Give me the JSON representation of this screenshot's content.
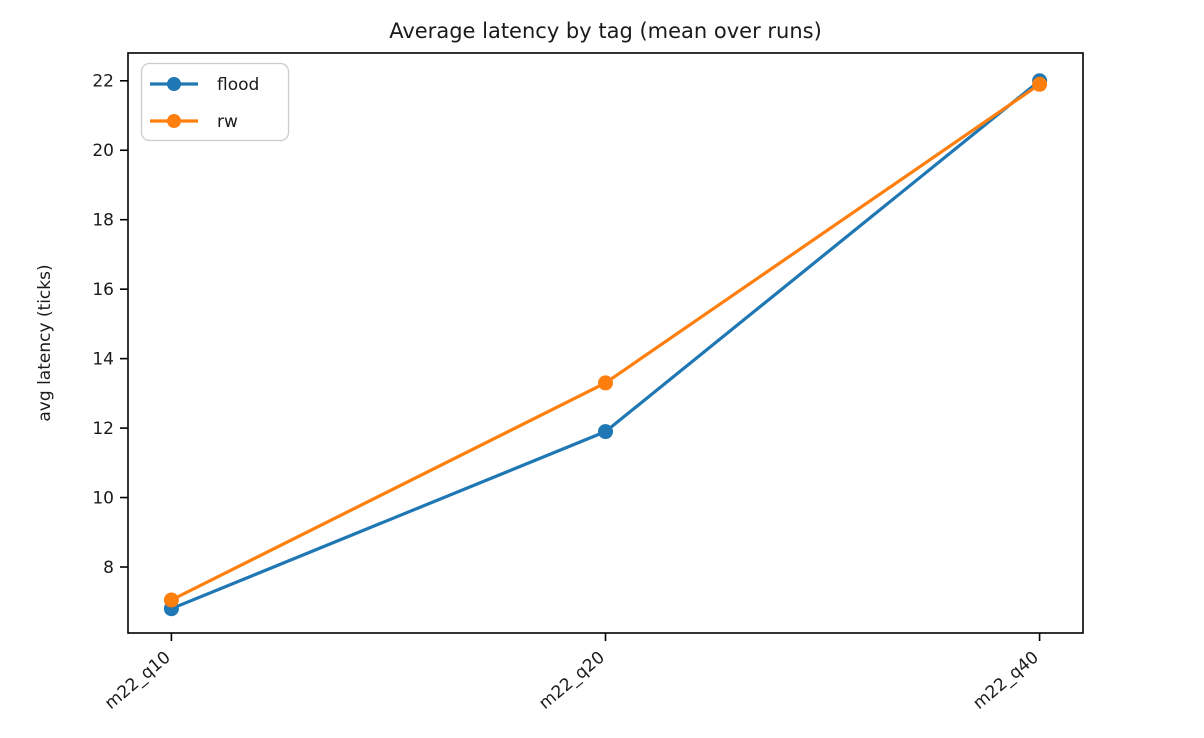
{
  "figure": {
    "background": "#ffffff",
    "axis_color": "#000000",
    "text_color": "#1a1a1a",
    "legend_border_color": "#cccccc"
  },
  "chart_data": {
    "type": "line",
    "title": "Average latency by tag (mean over runs)",
    "xlabel": "",
    "ylabel": "avg latency (ticks)",
    "categories": [
      "m22_q10",
      "m22_q20",
      "m22_q40"
    ],
    "series": [
      {
        "name": "flood",
        "color": "#1f77b4",
        "values": [
          6.8,
          11.9,
          22.0
        ]
      },
      {
        "name": "rw",
        "color": "#ff7f0e",
        "values": [
          7.05,
          13.3,
          21.9
        ]
      }
    ],
    "ylim": [
      6.1,
      22.8
    ],
    "yticks": [
      8,
      10,
      12,
      14,
      16,
      18,
      20,
      22
    ],
    "xtick_rotation_deg": 40,
    "grid": false,
    "marker": "circle",
    "legend": {
      "position": "upper-left",
      "entries": [
        "flood",
        "rw"
      ]
    }
  }
}
